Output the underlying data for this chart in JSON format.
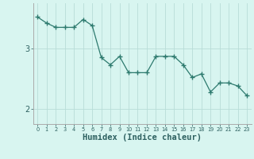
{
  "x": [
    0,
    1,
    2,
    3,
    4,
    5,
    6,
    7,
    8,
    9,
    10,
    11,
    12,
    13,
    14,
    15,
    16,
    17,
    18,
    19,
    20,
    21,
    22,
    23
  ],
  "y": [
    3.52,
    3.42,
    3.35,
    3.35,
    3.35,
    3.48,
    3.38,
    2.85,
    2.73,
    2.87,
    2.6,
    2.6,
    2.6,
    2.87,
    2.87,
    2.87,
    2.73,
    2.52,
    2.58,
    2.28,
    2.43,
    2.43,
    2.38,
    2.22
  ],
  "line_color": "#2d7a6e",
  "marker": "+",
  "marker_size": 4,
  "bg_color": "#d8f5f0",
  "grid_color": "#b8ddd8",
  "xlabel": "Humidex (Indice chaleur)",
  "xlabel_fontsize": 7.5,
  "yticks": [
    2,
    3
  ],
  "ylim": [
    1.75,
    3.75
  ],
  "xlim": [
    -0.5,
    23.5
  ],
  "title": "",
  "xtick_fontsize": 4.8,
  "ytick_fontsize": 7.0
}
